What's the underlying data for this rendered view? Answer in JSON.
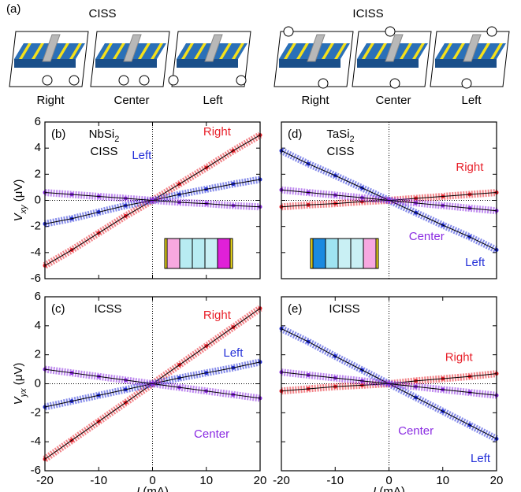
{
  "figure_label": "(a)",
  "diagram": {
    "groups": [
      {
        "title": "CISS",
        "labels": [
          "Right",
          "Center",
          "Left"
        ]
      },
      {
        "title": "ICISS",
        "labels": [
          "Right",
          "Center",
          "Left"
        ]
      }
    ]
  },
  "chart_data": [
    {
      "type": "scatter",
      "panel": "(b)",
      "material": [
        "NbSi",
        "2"
      ],
      "annotation": "CISS",
      "ylabel": [
        "V",
        "xy",
        " (μV)"
      ],
      "x": [
        -20,
        -15,
        -10,
        -5,
        0,
        5,
        10,
        15,
        20
      ],
      "xlim": [
        -20,
        20
      ],
      "ylim": [
        -6,
        6
      ],
      "xticks": [
        -20,
        -10,
        0,
        10,
        20
      ],
      "yticks": [
        -6,
        -4,
        -2,
        0,
        2,
        4,
        6
      ],
      "series": [
        {
          "name": "Right",
          "color": "#e8202a",
          "values": [
            -5,
            -3.8,
            -2.5,
            -1.2,
            0,
            1.25,
            2.5,
            3.8,
            5
          ]
        },
        {
          "name": "Left",
          "color": "#2430d8",
          "values": [
            -1.8,
            -1.4,
            -0.9,
            -0.4,
            0,
            0.45,
            0.85,
            1.25,
            1.6
          ]
        },
        {
          "name": "Center",
          "color": "#8a2be2",
          "values": [
            0.6,
            0.45,
            0.3,
            0.15,
            0,
            -0.15,
            -0.25,
            -0.4,
            -0.5
          ]
        }
      ]
    },
    {
      "type": "scatter",
      "panel": "(c)",
      "annotation": "ICSS",
      "ylabel": [
        "V",
        "yx",
        " (μV)"
      ],
      "xlabel": [
        "I",
        " (mA)"
      ],
      "x": [
        -20,
        -15,
        -10,
        -5,
        0,
        5,
        10,
        15,
        20
      ],
      "xlim": [
        -20,
        20
      ],
      "ylim": [
        -6,
        6
      ],
      "xticks": [
        -20,
        -10,
        0,
        10,
        20
      ],
      "yticks": [
        -6,
        -4,
        -2,
        0,
        2,
        4,
        6
      ],
      "series": [
        {
          "name": "Right",
          "color": "#e8202a",
          "values": [
            -5.2,
            -3.9,
            -2.6,
            -1.3,
            0,
            1.3,
            2.6,
            3.9,
            5.2
          ]
        },
        {
          "name": "Left",
          "color": "#2430d8",
          "values": [
            -1.6,
            -1.2,
            -0.8,
            -0.4,
            0,
            0.4,
            0.75,
            1.1,
            1.5
          ]
        },
        {
          "name": "Center",
          "color": "#8a2be2",
          "values": [
            1,
            0.75,
            0.5,
            0.25,
            0,
            -0.25,
            -0.5,
            -0.75,
            -1
          ]
        }
      ]
    },
    {
      "type": "scatter",
      "panel": "(d)",
      "material": [
        "TaSi",
        "2"
      ],
      "annotation": "CISS",
      "x": [
        -20,
        -15,
        -10,
        -5,
        0,
        5,
        10,
        15,
        20
      ],
      "xlim": [
        -20,
        20
      ],
      "ylim": [
        -6,
        6
      ],
      "yticks": [
        -6,
        -4,
        -2,
        0,
        2,
        4,
        6
      ],
      "show_ytick_labels": false,
      "series": [
        {
          "name": "Right",
          "color": "#e8202a",
          "values": [
            -0.5,
            -0.35,
            -0.25,
            -0.1,
            0,
            0.15,
            0.3,
            0.45,
            0.6
          ]
        },
        {
          "name": "Left",
          "color": "#2430d8",
          "values": [
            3.8,
            2.8,
            1.9,
            0.95,
            0,
            -0.95,
            -1.9,
            -2.8,
            -3.8
          ]
        },
        {
          "name": "Center",
          "color": "#8a2be2",
          "values": [
            0.8,
            0.6,
            0.4,
            0.2,
            0,
            -0.2,
            -0.4,
            -0.6,
            -0.8
          ]
        }
      ]
    },
    {
      "type": "scatter",
      "panel": "(e)",
      "annotation": "ICISS",
      "xlabel": [
        "I",
        " (mA)"
      ],
      "x": [
        -20,
        -15,
        -10,
        -5,
        0,
        5,
        10,
        15,
        20
      ],
      "xlim": [
        -20,
        20
      ],
      "ylim": [
        -6,
        6
      ],
      "xticks": [
        -20,
        -10,
        0,
        10,
        20
      ],
      "yticks": [
        -6,
        -4,
        -2,
        0,
        2,
        4,
        6
      ],
      "show_ytick_labels": false,
      "series": [
        {
          "name": "Right",
          "color": "#e8202a",
          "values": [
            -0.5,
            -0.35,
            -0.2,
            -0.1,
            0,
            0.2,
            0.35,
            0.5,
            0.7
          ]
        },
        {
          "name": "Left",
          "color": "#2430d8",
          "values": [
            3.8,
            2.9,
            1.9,
            0.95,
            0,
            -0.95,
            -1.9,
            -2.85,
            -3.8
          ]
        },
        {
          "name": "Center",
          "color": "#8a2be2",
          "values": [
            0.8,
            0.6,
            0.4,
            0.2,
            0,
            -0.2,
            -0.4,
            -0.6,
            -0.8
          ]
        }
      ]
    }
  ]
}
